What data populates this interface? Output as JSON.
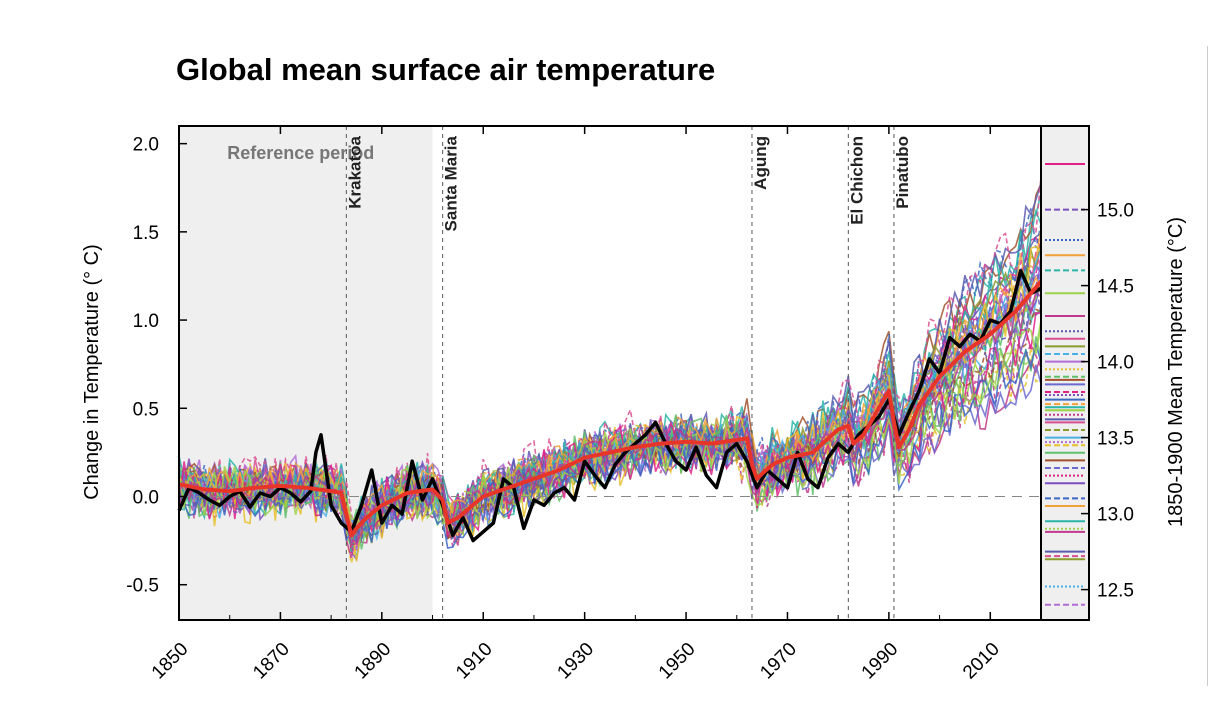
{
  "chart_data": {
    "type": "line",
    "title": "Global mean surface air temperature",
    "ylabel": "Change in Temperature (° C)",
    "ylabel_right": "1850-1900 Mean Temperature (°C)",
    "xlim": [
      1850,
      2020
    ],
    "ylim": [
      -0.7,
      2.1
    ],
    "x_ticks": [
      1850,
      1870,
      1890,
      1910,
      1930,
      1950,
      1970,
      1990,
      2010
    ],
    "y_ticks": [
      {
        "value": 2.0,
        "label": "2.0"
      },
      {
        "value": 1.5,
        "label": "1.5"
      },
      {
        "value": 1.0,
        "label": "1.0"
      },
      {
        "value": 0.5,
        "label": "0.5"
      },
      {
        "value": 0.0,
        "label": "0.0"
      },
      {
        "value": -0.5,
        "label": "-0.5"
      }
    ],
    "right_axis": {
      "ylim": [
        12.3,
        15.55
      ],
      "ticks": [
        {
          "value": 15.0,
          "label": "15.0"
        },
        {
          "value": 14.5,
          "label": "14.5"
        },
        {
          "value": 14.0,
          "label": "14.0"
        },
        {
          "value": 13.5,
          "label": "13.5"
        },
        {
          "value": 13.0,
          "label": "13.0"
        },
        {
          "value": 12.5,
          "label": "12.5"
        }
      ],
      "model_means": [
        15.3,
        15.0,
        14.8,
        14.7,
        14.6,
        14.45,
        14.3,
        14.2,
        14.15,
        14.1,
        14.05,
        14.0,
        13.95,
        13.9,
        13.88,
        13.85,
        13.8,
        13.78,
        13.75,
        13.72,
        13.7,
        13.68,
        13.65,
        13.62,
        13.6,
        13.55,
        13.5,
        13.47,
        13.45,
        13.4,
        13.35,
        13.3,
        13.25,
        13.2,
        13.1,
        13.05,
        12.95,
        12.9,
        12.88,
        12.75,
        12.72,
        12.7,
        12.52,
        12.4
      ]
    },
    "reference_period": {
      "label": "Reference period",
      "start": 1850,
      "end": 1900
    },
    "zero_line": 0.0,
    "eruptions": [
      {
        "name": "Krakatoa",
        "year": 1883
      },
      {
        "name": "Santa Maria",
        "year": 1902
      },
      {
        "name": "Agung",
        "year": 1963
      },
      {
        "name": "El Chichon",
        "year": 1982
      },
      {
        "name": "Pinatubo",
        "year": 1991
      }
    ],
    "series": [
      {
        "color": "#000000",
        "x": [
          1850,
          1852,
          1854,
          1856,
          1858,
          1860,
          1862,
          1864,
          1866,
          1868,
          1870,
          1872,
          1874,
          1876,
          1877,
          1878,
          1880,
          1882,
          1884,
          1886,
          1888,
          1890,
          1892,
          1894,
          1896,
          1898,
          1900,
          1902,
          1904,
          1906,
          1908,
          1910,
          1912,
          1914,
          1916,
          1918,
          1920,
          1922,
          1924,
          1926,
          1928,
          1930,
          1932,
          1934,
          1936,
          1938,
          1940,
          1942,
          1944,
          1946,
          1948,
          1950,
          1952,
          1954,
          1956,
          1958,
          1960,
          1962,
          1964,
          1966,
          1968,
          1970,
          1972,
          1974,
          1976,
          1978,
          1980,
          1982,
          1984,
          1986,
          1988,
          1990,
          1992,
          1994,
          1996,
          1998,
          2000,
          2002,
          2004,
          2006,
          2008,
          2010,
          2012,
          2014,
          2016,
          2018,
          2020
        ],
        "values": [
          -0.08,
          0.05,
          0.02,
          -0.02,
          -0.05,
          0.0,
          0.03,
          -0.06,
          0.02,
          0.0,
          0.05,
          0.02,
          -0.03,
          0.03,
          0.25,
          0.35,
          -0.05,
          -0.15,
          -0.2,
          -0.05,
          0.15,
          -0.15,
          -0.05,
          -0.1,
          0.2,
          -0.02,
          0.1,
          -0.05,
          -0.22,
          -0.12,
          -0.25,
          -0.2,
          -0.15,
          0.1,
          0.05,
          -0.18,
          -0.02,
          -0.05,
          0.02,
          0.05,
          -0.02,
          0.2,
          0.12,
          0.05,
          0.18,
          0.25,
          0.3,
          0.35,
          0.42,
          0.3,
          0.2,
          0.15,
          0.28,
          0.12,
          0.05,
          0.25,
          0.3,
          0.2,
          0.05,
          0.15,
          0.1,
          0.05,
          0.25,
          0.1,
          0.05,
          0.22,
          0.3,
          0.25,
          0.35,
          0.4,
          0.45,
          0.55,
          0.35,
          0.48,
          0.6,
          0.78,
          0.7,
          0.9,
          0.85,
          0.92,
          0.88,
          1.0,
          0.98,
          1.05,
          1.28,
          1.15,
          1.18
        ]
      },
      {
        "color": "#e8352a",
        "x": [
          1850,
          1855,
          1860,
          1865,
          1870,
          1875,
          1880,
          1882,
          1883,
          1884,
          1885,
          1887,
          1890,
          1895,
          1900,
          1902,
          1903,
          1905,
          1910,
          1915,
          1920,
          1925,
          1930,
          1935,
          1940,
          1945,
          1950,
          1955,
          1960,
          1962,
          1963,
          1964,
          1965,
          1967,
          1970,
          1975,
          1980,
          1982,
          1983,
          1985,
          1990,
          1991,
          1992,
          1994,
          1996,
          2000,
          2005,
          2010,
          2015,
          2020
        ],
        "values": [
          0.07,
          0.04,
          0.03,
          0.05,
          0.06,
          0.05,
          0.03,
          0.02,
          -0.1,
          -0.22,
          -0.18,
          -0.12,
          -0.05,
          0.02,
          0.04,
          -0.02,
          -0.15,
          -0.12,
          0.0,
          0.05,
          0.1,
          0.15,
          0.22,
          0.25,
          0.28,
          0.3,
          0.31,
          0.3,
          0.32,
          0.33,
          0.18,
          0.1,
          0.13,
          0.18,
          0.22,
          0.25,
          0.38,
          0.4,
          0.3,
          0.35,
          0.6,
          0.42,
          0.28,
          0.38,
          0.52,
          0.68,
          0.82,
          0.92,
          1.05,
          1.22
        ]
      }
    ]
  }
}
